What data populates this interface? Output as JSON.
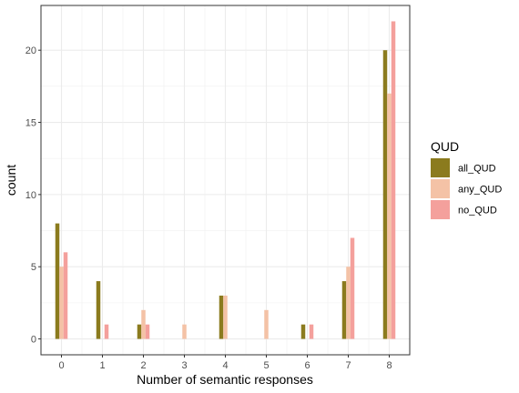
{
  "chart_data": {
    "type": "bar",
    "xlabel": "Number of semantic responses",
    "ylabel": "count",
    "x_ticks": [
      "0",
      "1",
      "2",
      "3",
      "4",
      "5",
      "6",
      "7",
      "8"
    ],
    "y_ticks": [
      0,
      5,
      10,
      15,
      20
    ],
    "ylim": [
      -1.1,
      23.1
    ],
    "xlim": [
      -0.5,
      8.5
    ],
    "grid": true,
    "legend": {
      "title": "QUD",
      "placement": "right"
    },
    "series": [
      {
        "name": "all_QUD",
        "color": "#8B7B1E",
        "points": [
          {
            "x": 0,
            "y": 8
          },
          {
            "x": 1,
            "y": 4
          },
          {
            "x": 2,
            "y": 1
          },
          {
            "x": 4,
            "y": 3
          },
          {
            "x": 6,
            "y": 1
          },
          {
            "x": 7,
            "y": 4
          },
          {
            "x": 8,
            "y": 20
          }
        ]
      },
      {
        "name": "any_QUD",
        "color": "#F4C2A6",
        "points": [
          {
            "x": 0,
            "y": 5
          },
          {
            "x": 2,
            "y": 2
          },
          {
            "x": 3,
            "y": 1
          },
          {
            "x": 4,
            "y": 3
          },
          {
            "x": 5,
            "y": 2
          },
          {
            "x": 7,
            "y": 5
          },
          {
            "x": 8,
            "y": 17
          }
        ]
      },
      {
        "name": "no_QUD",
        "color": "#F4A09C",
        "points": [
          {
            "x": 0,
            "y": 6
          },
          {
            "x": 1,
            "y": 1
          },
          {
            "x": 2,
            "y": 1
          },
          {
            "x": 6,
            "y": 1
          },
          {
            "x": 7,
            "y": 7
          },
          {
            "x": 8,
            "y": 22
          }
        ]
      }
    ]
  }
}
